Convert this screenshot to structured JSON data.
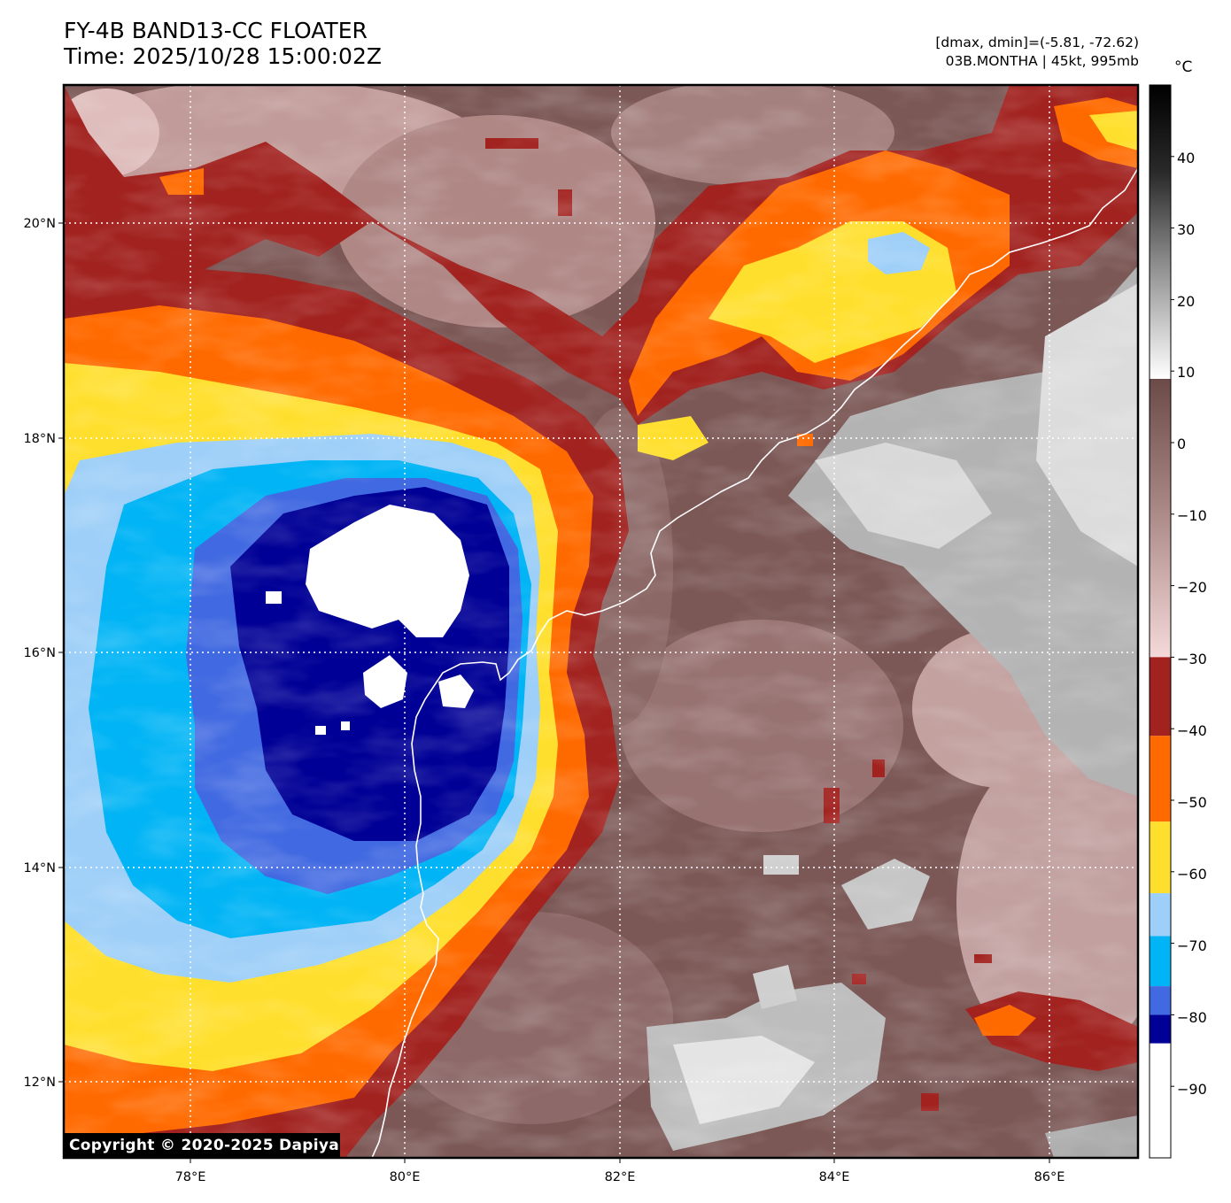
{
  "header": {
    "title_line1": "FY-4B BAND13-CC FLOATER",
    "title_line2": "Time: 2025/10/28 15:00:02Z",
    "info_line1": "[dmax, dmin]=(-5.81, -72.62)",
    "info_line2": "03B.MONTHA | 45kt, 995mb"
  },
  "colorbar": {
    "unit": "°C",
    "ticks": [
      "40",
      "30",
      "20",
      "10",
      "0",
      "−10",
      "−20",
      "−30",
      "−40",
      "−50",
      "−60",
      "−70",
      "−80",
      "−90"
    ],
    "bands": [
      {
        "from": -30,
        "to": -41,
        "color": "#a1221f"
      },
      {
        "from": -41,
        "to": -53,
        "color": "#ff6a00"
      },
      {
        "from": -53,
        "to": -63,
        "color": "#ffdf2d"
      },
      {
        "from": -63,
        "to": -69,
        "color": "#9ecff8"
      },
      {
        "from": -69,
        "to": -76,
        "color": "#00b4f5"
      },
      {
        "from": -76,
        "to": -80,
        "color": "#4169e1"
      },
      {
        "from": -80,
        "to": -84,
        "color": "#000096"
      },
      {
        "from": -84,
        "to": -100,
        "color": "#ffffff"
      }
    ]
  },
  "map": {
    "lon_ticks": [
      "78°E",
      "80°E",
      "82°E",
      "84°E",
      "86°E"
    ],
    "lat_ticks": [
      "20°N",
      "18°N",
      "16°N",
      "14°N",
      "12°N"
    ],
    "grid": true,
    "grid_style": "dotted white",
    "coastline_color": "#ffffff",
    "storm_center_shades": [
      "#000096",
      "#4169e1",
      "#00b4f5",
      "#9ecff8",
      "#ffdf2d",
      "#ff6a00",
      "#a1221f"
    ]
  },
  "footer": {
    "copyright": "Copyright © 2020-2025 Dapiya"
  }
}
